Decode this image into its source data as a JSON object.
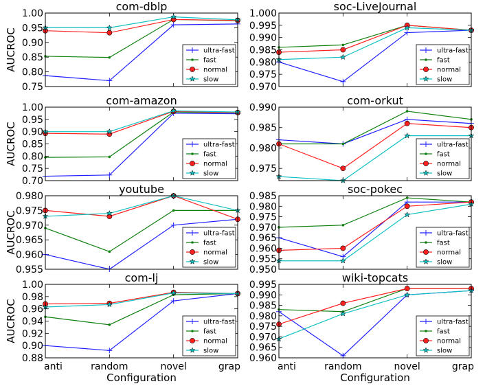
{
  "figure": {
    "ylabel": "AUCROC",
    "xlabel": "Configuration",
    "legend_labels": [
      "ultra-fast",
      "fast",
      "normal",
      "slow"
    ]
  },
  "chart_data": [
    {
      "type": "line",
      "title": "com-dblp",
      "xlabel": "",
      "ylabel": "AUCROC",
      "categories": [
        "anti",
        "random",
        "novel",
        "grap"
      ],
      "ylim": [
        0.75,
        1.0
      ],
      "yticks": [
        "1.00",
        "0.95",
        "0.90",
        "0.85",
        "0.80",
        "0.75"
      ],
      "legend": "lower-right",
      "grid": false,
      "series": [
        {
          "name": "ultra-fast",
          "color": "#2020ff",
          "marker": "plus",
          "values": [
            0.787,
            0.77,
            0.96,
            0.963
          ]
        },
        {
          "name": "fast",
          "color": "#108010",
          "marker": "dot",
          "values": [
            0.853,
            0.849,
            0.978,
            0.974
          ]
        },
        {
          "name": "normal",
          "color": "#ff2020",
          "marker": "circle",
          "values": [
            0.94,
            0.933,
            0.978,
            0.975
          ]
        },
        {
          "name": "slow",
          "color": "#10c0c0",
          "marker": "star",
          "values": [
            0.95,
            0.95,
            0.987,
            0.977
          ]
        }
      ]
    },
    {
      "type": "line",
      "title": "soc-LiveJournal",
      "xlabel": "",
      "ylabel": "",
      "categories": [
        "anti",
        "random",
        "novel",
        "grap"
      ],
      "ylim": [
        0.97,
        1.0
      ],
      "yticks": [
        "1.000",
        "0.995",
        "0.990",
        "0.985",
        "0.980",
        "0.975",
        "0.970"
      ],
      "legend": "lower-right",
      "grid": false,
      "series": [
        {
          "name": "ultra-fast",
          "color": "#2020ff",
          "marker": "plus",
          "values": [
            0.98,
            0.972,
            0.992,
            0.993
          ]
        },
        {
          "name": "fast",
          "color": "#108010",
          "marker": "dot",
          "values": [
            0.986,
            0.987,
            0.995,
            0.993
          ]
        },
        {
          "name": "normal",
          "color": "#ff2020",
          "marker": "circle",
          "values": [
            0.984,
            0.985,
            0.995,
            0.993
          ]
        },
        {
          "name": "slow",
          "color": "#10c0c0",
          "marker": "star",
          "values": [
            0.981,
            0.982,
            0.994,
            0.993
          ]
        }
      ]
    },
    {
      "type": "line",
      "title": "com-amazon",
      "xlabel": "",
      "ylabel": "AUCROC",
      "categories": [
        "anti",
        "random",
        "novel",
        "grap"
      ],
      "ylim": [
        0.7,
        1.0
      ],
      "yticks": [
        "1.00",
        "0.95",
        "0.90",
        "0.85",
        "0.80",
        "0.75",
        "0.70"
      ],
      "legend": "lower-right",
      "grid": false,
      "series": [
        {
          "name": "ultra-fast",
          "color": "#2020ff",
          "marker": "plus",
          "values": [
            0.718,
            0.723,
            0.975,
            0.973
          ]
        },
        {
          "name": "fast",
          "color": "#108010",
          "marker": "dot",
          "values": [
            0.795,
            0.797,
            0.98,
            0.977
          ]
        },
        {
          "name": "normal",
          "color": "#ff2020",
          "marker": "circle",
          "values": [
            0.893,
            0.89,
            0.983,
            0.978
          ]
        },
        {
          "name": "slow",
          "color": "#10c0c0",
          "marker": "star",
          "values": [
            0.9,
            0.9,
            0.985,
            0.98
          ]
        }
      ]
    },
    {
      "type": "line",
      "title": "com-orkut",
      "xlabel": "",
      "ylabel": "",
      "categories": [
        "anti",
        "random",
        "novel",
        "grap"
      ],
      "ylim": [
        0.972,
        0.99
      ],
      "yticks": [
        "0.990",
        "0.985",
        "0.980",
        "0.975"
      ],
      "legend": "lower-right",
      "grid": false,
      "series": [
        {
          "name": "ultra-fast",
          "color": "#2020ff",
          "marker": "plus",
          "values": [
            0.982,
            0.981,
            0.987,
            0.986
          ]
        },
        {
          "name": "fast",
          "color": "#108010",
          "marker": "dot",
          "values": [
            0.981,
            0.981,
            0.989,
            0.987
          ]
        },
        {
          "name": "normal",
          "color": "#ff2020",
          "marker": "circle",
          "values": [
            0.981,
            0.975,
            0.986,
            0.985
          ]
        },
        {
          "name": "slow",
          "color": "#10c0c0",
          "marker": "star",
          "values": [
            0.973,
            0.972,
            0.983,
            0.983
          ]
        }
      ]
    },
    {
      "type": "line",
      "title": "youtube",
      "xlabel": "",
      "ylabel": "AUCROC",
      "categories": [
        "anti",
        "random",
        "novel",
        "grap"
      ],
      "ylim": [
        0.955,
        0.98
      ],
      "yticks": [
        "0.980",
        "0.975",
        "0.970",
        "0.965",
        "0.960",
        "0.955"
      ],
      "legend": "lower-right",
      "grid": false,
      "series": [
        {
          "name": "ultra-fast",
          "color": "#2020ff",
          "marker": "plus",
          "values": [
            0.96,
            0.955,
            0.97,
            0.972
          ]
        },
        {
          "name": "fast",
          "color": "#108010",
          "marker": "dot",
          "values": [
            0.969,
            0.961,
            0.975,
            0.975
          ]
        },
        {
          "name": "normal",
          "color": "#ff2020",
          "marker": "circle",
          "values": [
            0.975,
            0.973,
            0.98,
            0.972
          ]
        },
        {
          "name": "slow",
          "color": "#10c0c0",
          "marker": "star",
          "values": [
            0.973,
            0.974,
            0.98,
            0.975
          ]
        }
      ]
    },
    {
      "type": "line",
      "title": "soc-pokec",
      "xlabel": "",
      "ylabel": "",
      "categories": [
        "anti",
        "random",
        "novel",
        "grap"
      ],
      "ylim": [
        0.95,
        0.985
      ],
      "yticks": [
        "0.985",
        "0.980",
        "0.975",
        "0.970",
        "0.965",
        "0.960",
        "0.955",
        "0.950"
      ],
      "legend": "lower-right",
      "grid": false,
      "series": [
        {
          "name": "ultra-fast",
          "color": "#2020ff",
          "marker": "plus",
          "values": [
            0.965,
            0.956,
            0.982,
            0.982
          ]
        },
        {
          "name": "fast",
          "color": "#108010",
          "marker": "dot",
          "values": [
            0.97,
            0.971,
            0.984,
            0.982
          ]
        },
        {
          "name": "normal",
          "color": "#ff2020",
          "marker": "circle",
          "values": [
            0.959,
            0.96,
            0.98,
            0.982
          ]
        },
        {
          "name": "slow",
          "color": "#10c0c0",
          "marker": "star",
          "values": [
            0.954,
            0.954,
            0.976,
            0.981
          ]
        }
      ]
    },
    {
      "type": "line",
      "title": "com-lj",
      "xlabel": "Configuration",
      "ylabel": "AUCROC",
      "categories": [
        "anti",
        "random",
        "novel",
        "grap"
      ],
      "ylim": [
        0.88,
        1.0
      ],
      "yticks": [
        "1.00",
        "0.98",
        "0.96",
        "0.94",
        "0.92",
        "0.90",
        "0.88"
      ],
      "legend": "lower-right",
      "grid": false,
      "series": [
        {
          "name": "ultra-fast",
          "color": "#2020ff",
          "marker": "plus",
          "values": [
            0.9,
            0.892,
            0.973,
            0.985
          ]
        },
        {
          "name": "fast",
          "color": "#108010",
          "marker": "dot",
          "values": [
            0.947,
            0.934,
            0.983,
            0.985
          ]
        },
        {
          "name": "normal",
          "color": "#ff2020",
          "marker": "circle",
          "values": [
            0.968,
            0.969,
            0.987,
            0.985
          ]
        },
        {
          "name": "slow",
          "color": "#10c0c0",
          "marker": "star",
          "values": [
            0.963,
            0.967,
            0.986,
            0.985
          ]
        }
      ]
    },
    {
      "type": "line",
      "title": "wiki-topcats",
      "xlabel": "Configuration",
      "ylabel": "",
      "categories": [
        "anti",
        "random",
        "novel",
        "grap"
      ],
      "ylim": [
        0.96,
        0.995
      ],
      "yticks": [
        "0.995",
        "0.990",
        "0.985",
        "0.980",
        "0.975",
        "0.970",
        "0.965",
        "0.960"
      ],
      "legend": "lower-right",
      "grid": false,
      "series": [
        {
          "name": "ultra-fast",
          "color": "#2020ff",
          "marker": "plus",
          "values": [
            0.982,
            0.961,
            0.99,
            0.992
          ]
        },
        {
          "name": "fast",
          "color": "#108010",
          "marker": "dot",
          "values": [
            0.983,
            0.982,
            0.993,
            0.993
          ]
        },
        {
          "name": "normal",
          "color": "#ff2020",
          "marker": "circle",
          "values": [
            0.976,
            0.986,
            0.993,
            0.993
          ]
        },
        {
          "name": "slow",
          "color": "#10c0c0",
          "marker": "star",
          "values": [
            0.969,
            0.981,
            0.99,
            0.992
          ]
        }
      ]
    }
  ]
}
